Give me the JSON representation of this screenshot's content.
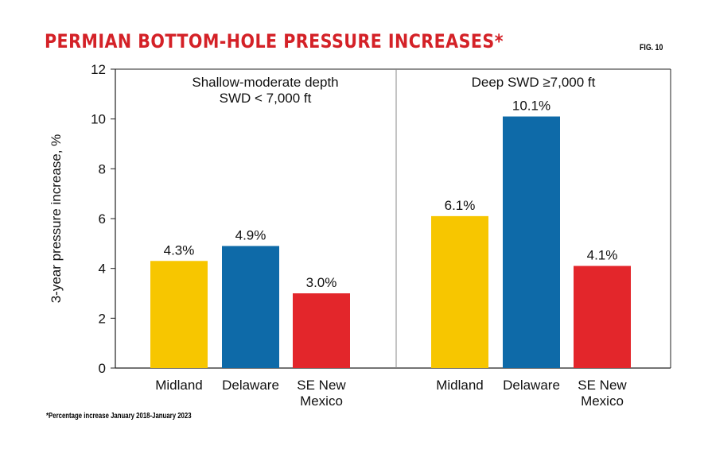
{
  "title": "PERMIAN BOTTOM-HOLE PRESSURE INCREASES*",
  "fig_label": "FIG. 10",
  "footnote": "*Percentage increase January 2018-January 2023",
  "colors": {
    "title": "#d42127",
    "Midland": "#f7c600",
    "Delaware": "#0e6aa8",
    "SE New Mexico": "#e3262b",
    "axis": "#222222",
    "divider": "#888888"
  },
  "chart_data": {
    "type": "bar",
    "ylabel": "3-year pressure increase, %",
    "ylim": [
      0,
      12
    ],
    "yticks": [
      0,
      2,
      4,
      6,
      8,
      10,
      12
    ],
    "grid": false,
    "categories": [
      "Midland",
      "Delaware",
      "SE New Mexico"
    ],
    "category_labels": [
      [
        "Midland"
      ],
      [
        "Delaware"
      ],
      [
        "SE New",
        "Mexico"
      ]
    ],
    "panels": [
      {
        "label_lines": [
          "Shallow-moderate depth",
          "SWD < 7,000 ft"
        ],
        "values": [
          4.3,
          4.9,
          3.0
        ],
        "value_labels": [
          "4.3%",
          "4.9%",
          "3.0%"
        ]
      },
      {
        "label_lines": [
          "Deep SWD ≥7,000 ft"
        ],
        "values": [
          6.1,
          10.1,
          4.1
        ],
        "value_labels": [
          "6.1%",
          "10.1%",
          "4.1%"
        ]
      }
    ]
  }
}
